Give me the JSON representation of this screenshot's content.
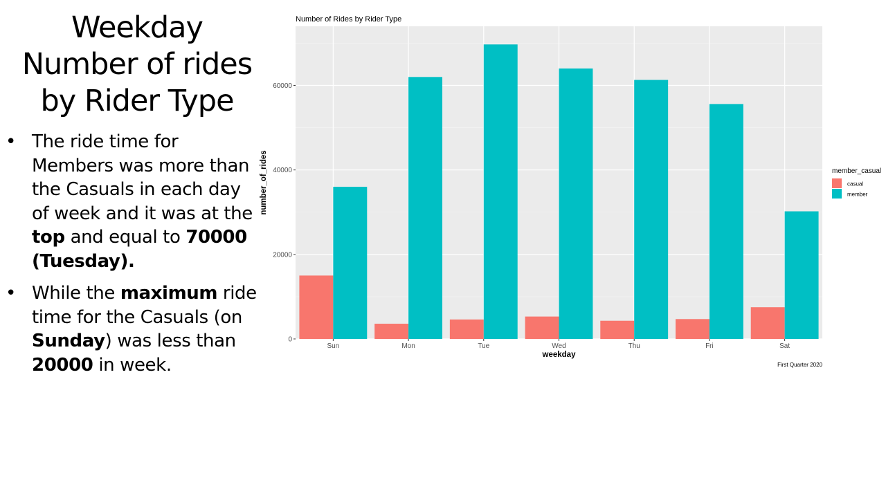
{
  "slide": {
    "title": "Weekday Number of rides by Rider Type",
    "bullet_char": "•",
    "bullets": [
      [
        {
          "text": "The ride time for Members was more than the Casuals in each day of week and it was at the ",
          "bold": false
        },
        {
          "text": "top",
          "bold": true
        },
        {
          "text": " and equal to ",
          "bold": false
        },
        {
          "text": "70000 (Tuesday).",
          "bold": true
        }
      ],
      [
        {
          "text": "While the ",
          "bold": false
        },
        {
          "text": "maximum",
          "bold": true
        },
        {
          "text": " ride time for the Casuals (on ",
          "bold": false
        },
        {
          "text": "Sunday",
          "bold": true
        },
        {
          "text": ") was less than ",
          "bold": false
        },
        {
          "text": "20000",
          "bold": true
        },
        {
          "text": " in week.",
          "bold": false
        }
      ]
    ]
  },
  "chart_data": {
    "type": "bar",
    "title": "Number of Rides by Rider Type",
    "xlabel": "weekday",
    "ylabel": "number_of_rides",
    "caption": "First Quarter 2020",
    "categories": [
      "Sun",
      "Mon",
      "Tue",
      "Wed",
      "Thu",
      "Fri",
      "Sat"
    ],
    "series": [
      {
        "name": "casual",
        "color": "#F8766D",
        "values": [
          15000,
          3600,
          4600,
          5300,
          4300,
          4700,
          7500
        ]
      },
      {
        "name": "member",
        "color": "#00BFC4",
        "values": [
          36000,
          62000,
          69700,
          64000,
          61300,
          55600,
          30200
        ]
      }
    ],
    "ylim": [
      0,
      74000
    ],
    "yticks": [
      0,
      20000,
      40000,
      60000
    ],
    "grid": true,
    "legend": {
      "title": "member_casual",
      "position": "right"
    },
    "panel_color": "#EBEBEB",
    "grid_color": "#FFFFFF"
  }
}
